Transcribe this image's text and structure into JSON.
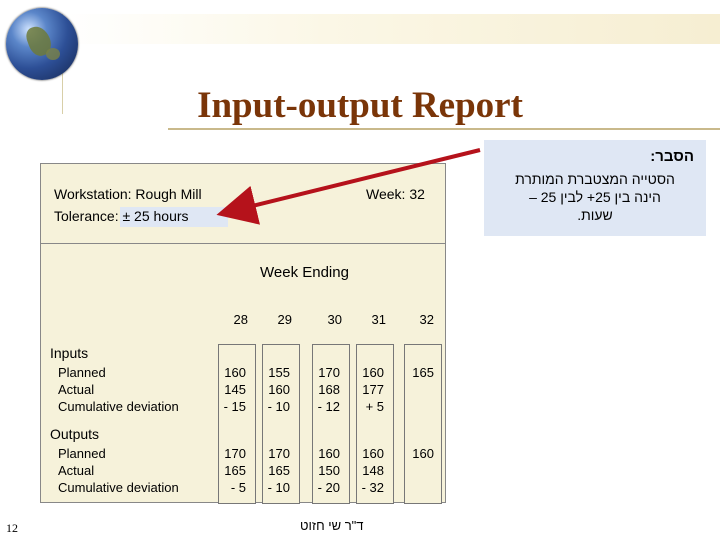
{
  "title": "Input-output Report",
  "note": {
    "title": "הסבר:",
    "lines": [
      "הסטייה המצטברת המותרת",
      "הינה בין 25+ לבין 25 –",
      "שעות."
    ]
  },
  "report": {
    "workstation": "Workstation: Rough Mill",
    "tolerance": "Tolerance: ± 25 hours",
    "week": "Week: 32",
    "week_ending": "Week Ending",
    "columns": [
      "28",
      "29",
      "30",
      "31",
      "32"
    ],
    "inputs": {
      "label": "Inputs",
      "rows": [
        "Planned",
        "Actual",
        "Cumulative deviation"
      ],
      "values": [
        [
          "160",
          "145",
          "- 15"
        ],
        [
          "155",
          "160",
          "- 10"
        ],
        [
          "170",
          "168",
          "- 12"
        ],
        [
          "160",
          "177",
          "+ 5"
        ],
        [
          "165",
          "",
          ""
        ]
      ]
    },
    "outputs": {
      "label": "Outputs",
      "rows": [
        "Planned",
        "Actual",
        "Cumulative deviation"
      ],
      "values": [
        [
          "170",
          "165",
          "- 5"
        ],
        [
          "170",
          "165",
          "- 10"
        ],
        [
          "160",
          "150",
          "- 20"
        ],
        [
          "160",
          "148",
          "- 32"
        ],
        [
          "160",
          "",
          ""
        ]
      ]
    }
  },
  "footer": {
    "page_number": "12",
    "author": "ד\"ר שי חזוט"
  },
  "colors": {
    "title": "#7a3508",
    "panel": "#f6f2da",
    "note_bg": "#dfe7f4",
    "arrow": "#b5121b"
  }
}
